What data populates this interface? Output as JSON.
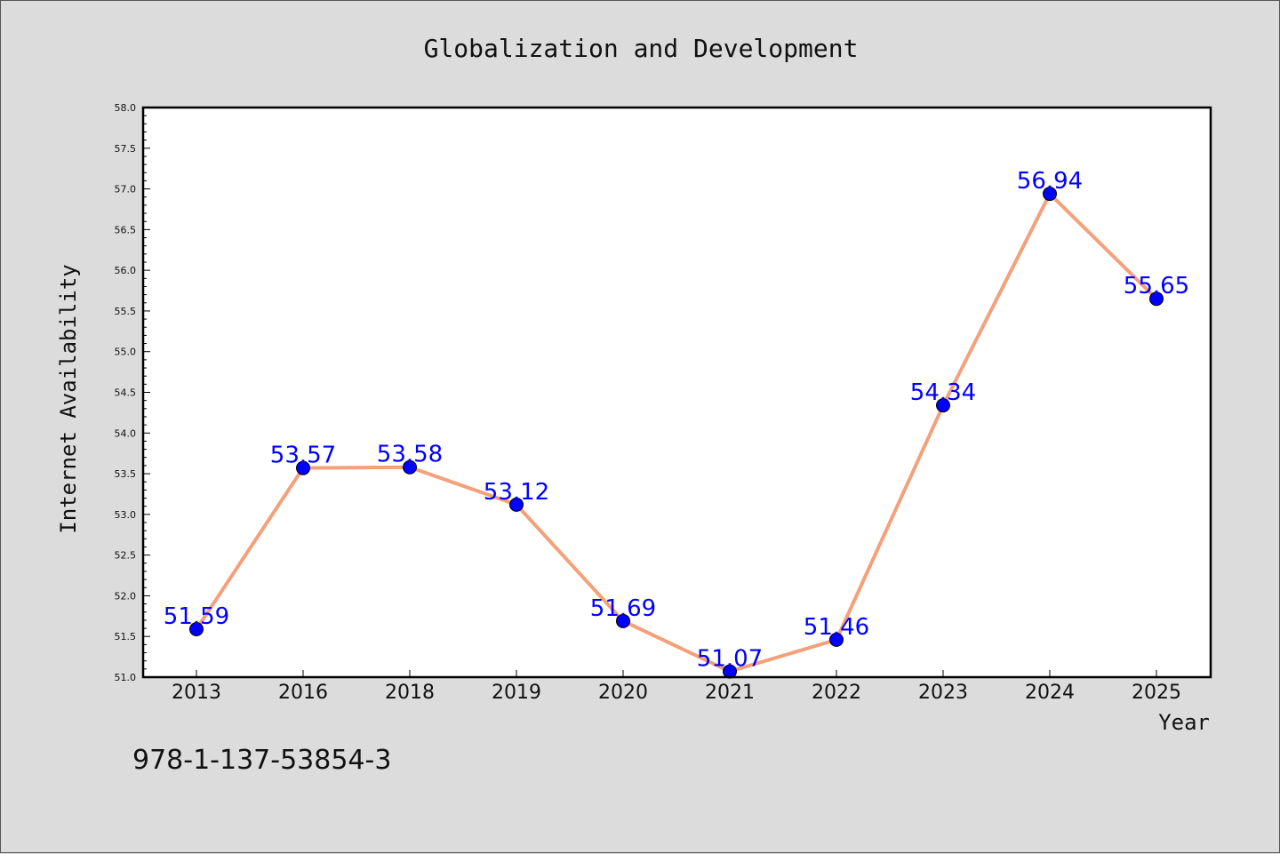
{
  "chart_data": {
    "type": "line",
    "title": "Globalization and Development",
    "xlabel": "Year",
    "ylabel": "Internet Availability",
    "categories": [
      "2013",
      "2016",
      "2018",
      "2019",
      "2020",
      "2021",
      "2022",
      "2023",
      "2024",
      "2025"
    ],
    "values": [
      51.59,
      53.57,
      53.58,
      53.12,
      51.69,
      51.07,
      51.46,
      54.34,
      56.94,
      55.65
    ],
    "data_labels": [
      "51.59",
      "53.57",
      "53.58",
      "53.12",
      "51.69",
      "51.07",
      "51.46",
      "54.34",
      "56.94",
      "55.65"
    ],
    "ylim": [
      51.0,
      58.0
    ],
    "yticks": [
      "51.0",
      "51.5",
      "52.0",
      "52.5",
      "53.0",
      "53.5",
      "54.0",
      "54.5",
      "55.0",
      "55.5",
      "56.0",
      "56.5",
      "57.0",
      "57.5",
      "58.0"
    ],
    "grid": false,
    "line_color": "#f4a07a",
    "marker_color": "#0000ff",
    "label_color": "#0000ff"
  },
  "footer": {
    "isbn": "978-1-137-53854-3"
  }
}
